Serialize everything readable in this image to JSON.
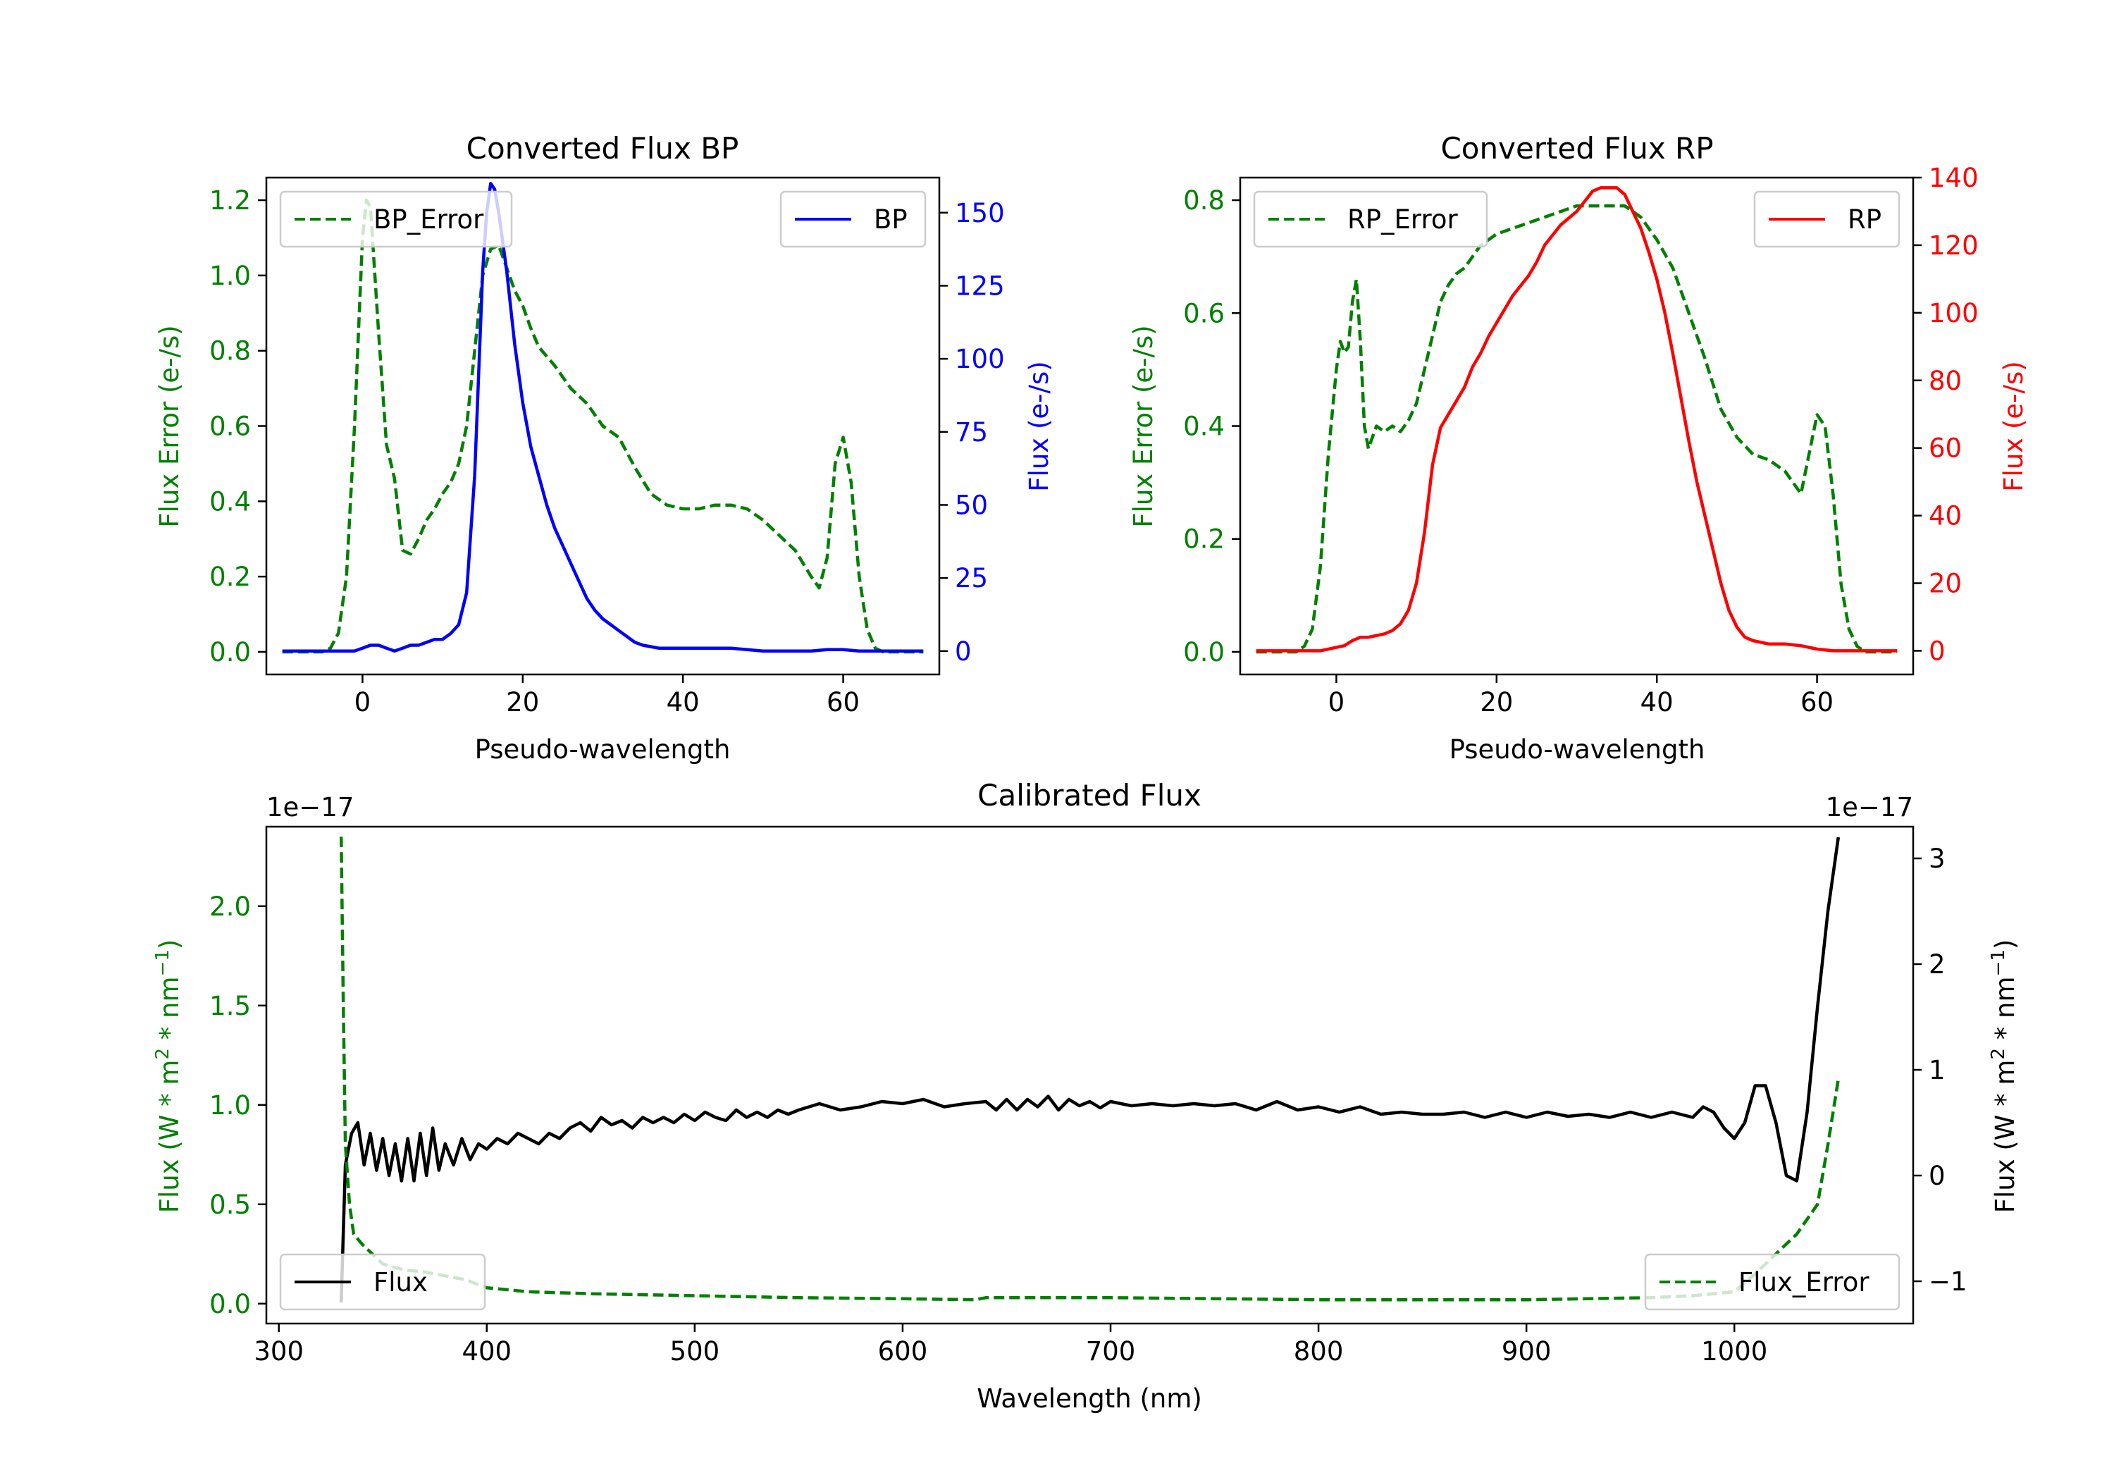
{
  "colors": {
    "bp": "#0000ff",
    "rp": "#ff0000",
    "error": "#008000",
    "flux": "#000000"
  },
  "chart_data": [
    {
      "id": "bp",
      "type": "line",
      "title": "Converted Flux BP",
      "xlabel": "Pseudo-wavelength",
      "xlim": [
        -12,
        72
      ],
      "xticks": [
        "0",
        "20",
        "40",
        "60"
      ],
      "left_axis": {
        "label": "Flux Error (e-/s)",
        "ylim": [
          -0.06,
          1.26
        ],
        "ticks": [
          "0.0",
          "0.2",
          "0.4",
          "0.6",
          "0.8",
          "1.0",
          "1.2"
        ]
      },
      "right_axis": {
        "label": "Flux (e-/s)",
        "ylim": [
          -8,
          162
        ],
        "ticks": [
          "0",
          "25",
          "50",
          "75",
          "100",
          "125",
          "150"
        ]
      },
      "series": [
        {
          "name": "BP_Error",
          "axis": "left",
          "style": "dashed",
          "color": "error",
          "x": [
            -10,
            -5,
            -4,
            -3,
            -2,
            -1,
            0,
            0.5,
            1,
            2,
            3,
            4,
            5,
            6,
            7,
            8,
            9,
            10,
            11,
            12,
            13,
            14,
            15,
            16,
            17,
            18,
            19,
            20,
            21,
            22,
            24,
            26,
            28,
            30,
            32,
            34,
            36,
            38,
            40,
            42,
            44,
            46,
            48,
            50,
            52,
            54,
            56,
            57,
            58,
            59,
            60,
            61,
            62,
            63,
            64,
            65,
            66,
            67,
            70
          ],
          "values": [
            0.0,
            0.0,
            0.01,
            0.05,
            0.2,
            0.6,
            1.1,
            1.2,
            1.18,
            0.85,
            0.55,
            0.46,
            0.27,
            0.26,
            0.3,
            0.35,
            0.38,
            0.42,
            0.45,
            0.5,
            0.6,
            0.8,
            1.0,
            1.07,
            1.08,
            1.02,
            0.96,
            0.92,
            0.86,
            0.81,
            0.76,
            0.7,
            0.66,
            0.6,
            0.57,
            0.49,
            0.42,
            0.39,
            0.38,
            0.38,
            0.39,
            0.39,
            0.38,
            0.35,
            0.31,
            0.27,
            0.2,
            0.17,
            0.25,
            0.5,
            0.57,
            0.45,
            0.2,
            0.06,
            0.01,
            0.0,
            0.0,
            0.0,
            0.0
          ]
        },
        {
          "name": "BP",
          "axis": "right",
          "style": "solid",
          "color": "bp",
          "x": [
            -10,
            -1,
            0,
            1,
            2,
            3,
            4,
            5,
            6,
            7,
            8,
            9,
            10,
            11,
            12,
            13,
            14,
            15,
            15.5,
            16,
            16.5,
            17,
            18,
            19,
            20,
            21,
            22,
            23,
            24,
            25,
            26,
            27,
            28,
            29,
            30,
            31,
            32,
            33,
            34,
            35,
            36,
            37,
            38,
            39,
            40,
            42,
            44,
            46,
            48,
            50,
            52,
            54,
            56,
            58,
            60,
            62,
            64,
            66,
            70
          ],
          "values": [
            0,
            0,
            1,
            2,
            2,
            1,
            0,
            1,
            2,
            2,
            3,
            4,
            4,
            6,
            9,
            20,
            60,
            130,
            150,
            160,
            158,
            150,
            130,
            105,
            85,
            70,
            60,
            50,
            42,
            36,
            30,
            24,
            18,
            14,
            11,
            9,
            7,
            5,
            3,
            2,
            1.5,
            1,
            1,
            1,
            1,
            1,
            1,
            1,
            0.5,
            0,
            0,
            0,
            0,
            0.5,
            0.5,
            0,
            0,
            0,
            0
          ]
        }
      ],
      "legends": [
        {
          "series": "BP_Error",
          "placement": "upper left"
        },
        {
          "series": "BP",
          "placement": "upper right"
        }
      ]
    },
    {
      "id": "rp",
      "type": "line",
      "title": "Converted Flux RP",
      "xlabel": "Pseudo-wavelength",
      "xlim": [
        -12,
        72
      ],
      "xticks": [
        "0",
        "20",
        "40",
        "60"
      ],
      "left_axis": {
        "label": "Flux Error (e-/s)",
        "ylim": [
          -0.04,
          0.84
        ],
        "ticks": [
          "0.0",
          "0.2",
          "0.4",
          "0.6",
          "0.8"
        ]
      },
      "right_axis": {
        "label": "Flux (e-/s)",
        "ylim": [
          -7,
          140
        ],
        "ticks": [
          "0",
          "20",
          "40",
          "60",
          "80",
          "100",
          "120",
          "140"
        ]
      },
      "series": [
        {
          "name": "RP_Error",
          "axis": "left",
          "style": "dashed",
          "color": "error",
          "x": [
            -10,
            -5,
            -4,
            -3,
            -2,
            -1,
            0,
            0.5,
            1,
            1.5,
            2,
            2.5,
            3,
            3.5,
            4,
            5,
            6,
            7,
            8,
            9,
            10,
            11,
            12,
            13,
            14,
            15,
            16,
            18,
            20,
            22,
            24,
            26,
            28,
            30,
            32,
            34,
            36,
            38,
            40,
            42,
            44,
            46,
            48,
            50,
            52,
            54,
            55,
            56,
            57,
            58,
            59,
            60,
            61,
            62,
            63,
            64,
            65,
            66,
            67,
            70
          ],
          "values": [
            0.0,
            0.0,
            0.01,
            0.04,
            0.15,
            0.35,
            0.5,
            0.55,
            0.53,
            0.54,
            0.62,
            0.66,
            0.55,
            0.4,
            0.36,
            0.4,
            0.39,
            0.4,
            0.39,
            0.41,
            0.44,
            0.5,
            0.56,
            0.62,
            0.65,
            0.67,
            0.68,
            0.72,
            0.74,
            0.75,
            0.76,
            0.77,
            0.78,
            0.79,
            0.79,
            0.79,
            0.79,
            0.77,
            0.73,
            0.68,
            0.6,
            0.52,
            0.43,
            0.38,
            0.35,
            0.34,
            0.33,
            0.32,
            0.3,
            0.28,
            0.35,
            0.42,
            0.4,
            0.28,
            0.12,
            0.04,
            0.01,
            0.0,
            0.0,
            0.0
          ]
        },
        {
          "name": "RP",
          "axis": "right",
          "style": "solid",
          "color": "rp",
          "x": [
            -10,
            -2,
            0,
            1,
            2,
            3,
            4,
            5,
            6,
            7,
            8,
            9,
            10,
            11,
            12,
            13,
            14,
            15,
            16,
            17,
            18,
            19,
            20,
            21,
            22,
            23,
            24,
            25,
            26,
            27,
            28,
            29,
            30,
            31,
            32,
            33,
            34,
            35,
            36,
            37,
            38,
            39,
            40,
            41,
            42,
            43,
            44,
            45,
            46,
            47,
            48,
            49,
            50,
            51,
            52,
            54,
            56,
            58,
            60,
            62,
            66,
            70
          ],
          "values": [
            0,
            0,
            1,
            1.5,
            3,
            4,
            4,
            4.5,
            5,
            6,
            8,
            12,
            20,
            35,
            55,
            66,
            70,
            74,
            78,
            84,
            88,
            93,
            97,
            101,
            105,
            108,
            111,
            115,
            120,
            123,
            126,
            128,
            130,
            133,
            136,
            137,
            137,
            137,
            135,
            130,
            125,
            118,
            110,
            100,
            88,
            75,
            62,
            50,
            40,
            30,
            20,
            12,
            7,
            4,
            3,
            2,
            2,
            1.5,
            0.5,
            0,
            0,
            0
          ]
        }
      ],
      "legends": [
        {
          "series": "RP_Error",
          "placement": "upper left"
        },
        {
          "series": "RP",
          "placement": "upper right"
        }
      ]
    },
    {
      "id": "cal",
      "type": "line",
      "title": "Calibrated Flux",
      "xlabel": "Wavelength (nm)",
      "xlim": [
        294,
        1086
      ],
      "xticks": [
        "300",
        "400",
        "500",
        "600",
        "700",
        "800",
        "900",
        "1000"
      ],
      "left_axis": {
        "label": "Flux (W * m$^2$ * nm$^{-1}$)",
        "label_main": "Flux (W * m",
        "label_sup1": "2",
        "label_mid": " * nm",
        "label_sup2": "−1",
        "label_end": ")",
        "offset_text": "1e−17",
        "ylim": [
          -0.1,
          2.4
        ],
        "ticks": [
          "0.0",
          "0.5",
          "1.0",
          "1.5",
          "2.0"
        ]
      },
      "right_axis": {
        "label": "Flux (W * m$^2$ * nm$^{-1}$)",
        "label_main": "Flux (W * m",
        "label_sup1": "2",
        "label_mid": " * nm",
        "label_sup2": "−1",
        "label_end": ")",
        "offset_text": "1e−17",
        "ylim": [
          -1.4,
          3.3
        ],
        "ticks": [
          "−1",
          "0",
          "1",
          "2",
          "3"
        ]
      },
      "series": [
        {
          "name": "Flux",
          "axis": "right",
          "style": "solid",
          "color": "flux",
          "x": [
            330,
            332,
            335,
            338,
            341,
            344,
            347,
            350,
            353,
            356,
            359,
            362,
            365,
            368,
            371,
            374,
            377,
            380,
            384,
            388,
            392,
            396,
            400,
            405,
            410,
            415,
            420,
            425,
            430,
            435,
            440,
            445,
            450,
            455,
            460,
            465,
            470,
            475,
            480,
            485,
            490,
            495,
            500,
            505,
            510,
            515,
            520,
            525,
            530,
            535,
            540,
            545,
            550,
            560,
            570,
            580,
            590,
            600,
            610,
            620,
            630,
            640,
            645,
            650,
            655,
            660,
            665,
            670,
            675,
            680,
            685,
            690,
            695,
            700,
            710,
            720,
            730,
            740,
            750,
            760,
            770,
            780,
            790,
            800,
            810,
            820,
            830,
            840,
            850,
            860,
            870,
            880,
            890,
            900,
            910,
            920,
            930,
            940,
            950,
            960,
            970,
            980,
            985,
            990,
            995,
            1000,
            1005,
            1010,
            1015,
            1020,
            1025,
            1030,
            1035,
            1040,
            1045,
            1050
          ],
          "values": [
            -1.2,
            0.1,
            0.4,
            0.5,
            0.1,
            0.4,
            0.05,
            0.35,
            0.0,
            0.3,
            -0.05,
            0.35,
            -0.05,
            0.4,
            0.0,
            0.45,
            0.05,
            0.3,
            0.1,
            0.35,
            0.15,
            0.3,
            0.25,
            0.35,
            0.3,
            0.4,
            0.35,
            0.3,
            0.4,
            0.35,
            0.45,
            0.5,
            0.42,
            0.55,
            0.48,
            0.52,
            0.45,
            0.55,
            0.5,
            0.55,
            0.5,
            0.58,
            0.52,
            0.6,
            0.55,
            0.52,
            0.62,
            0.55,
            0.6,
            0.55,
            0.62,
            0.58,
            0.62,
            0.68,
            0.62,
            0.65,
            0.7,
            0.68,
            0.72,
            0.65,
            0.68,
            0.7,
            0.62,
            0.72,
            0.62,
            0.72,
            0.65,
            0.75,
            0.62,
            0.72,
            0.66,
            0.7,
            0.64,
            0.7,
            0.66,
            0.68,
            0.66,
            0.68,
            0.66,
            0.68,
            0.62,
            0.7,
            0.62,
            0.65,
            0.6,
            0.65,
            0.58,
            0.6,
            0.58,
            0.58,
            0.6,
            0.55,
            0.6,
            0.55,
            0.6,
            0.56,
            0.58,
            0.55,
            0.6,
            0.55,
            0.6,
            0.55,
            0.65,
            0.6,
            0.45,
            0.35,
            0.5,
            0.85,
            0.85,
            0.5,
            0.0,
            -0.05,
            0.6,
            1.6,
            2.5,
            3.2
          ]
        },
        {
          "name": "Flux_Error",
          "axis": "left",
          "style": "dashed",
          "color": "error",
          "x": [
            330,
            331,
            332,
            334,
            336,
            340,
            345,
            350,
            360,
            370,
            380,
            390,
            400,
            420,
            450,
            500,
            550,
            600,
            635,
            640,
            700,
            800,
            900,
            960,
            980,
            1000,
            1010,
            1020,
            1030,
            1040,
            1045,
            1050
          ],
          "values": [
            2.35,
            1.5,
            0.8,
            0.5,
            0.35,
            0.3,
            0.25,
            0.2,
            0.17,
            0.16,
            0.14,
            0.12,
            0.08,
            0.06,
            0.05,
            0.04,
            0.03,
            0.025,
            0.02,
            0.03,
            0.03,
            0.02,
            0.02,
            0.03,
            0.04,
            0.06,
            0.15,
            0.25,
            0.35,
            0.5,
            0.8,
            1.13
          ]
        }
      ],
      "legends": [
        {
          "series": "Flux",
          "placement": "lower left"
        },
        {
          "series": "Flux_Error",
          "placement": "lower right"
        }
      ]
    }
  ]
}
